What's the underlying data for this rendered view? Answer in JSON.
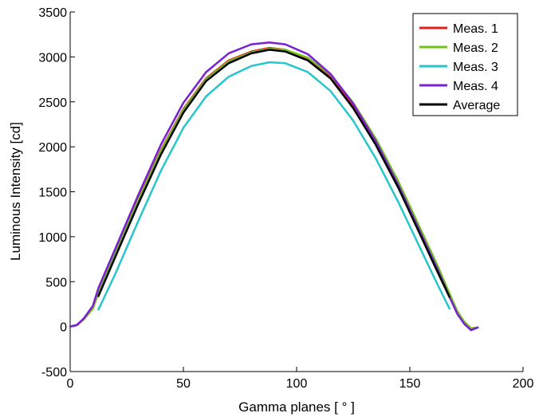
{
  "chart_data": {
    "type": "line",
    "xlabel": "Gamma planes [ ° ]",
    "ylabel": "Luminous Intensity  [cd]",
    "xlim": [
      0,
      200
    ],
    "ylim": [
      -500,
      3500
    ],
    "x_ticks": [
      "0",
      "50",
      "100",
      "150",
      "200"
    ],
    "y_ticks": [
      "-500",
      "0",
      "500",
      "1000",
      "1500",
      "2000",
      "2500",
      "3000",
      "3500"
    ],
    "x_tick_values": [
      0,
      50,
      100,
      150,
      200
    ],
    "y_tick_values": [
      -500,
      0,
      500,
      1000,
      1500,
      2000,
      2500,
      3000,
      3500
    ],
    "grid": false,
    "legend_position": "top-right",
    "series": [
      {
        "name": "Meas. 1",
        "color": "#e0201b",
        "points": [
          [
            0,
            0
          ],
          [
            3,
            15
          ],
          [
            6,
            80
          ],
          [
            10,
            200
          ],
          [
            12.5,
            380
          ],
          [
            20,
            830
          ],
          [
            30,
            1410
          ],
          [
            40,
            1960
          ],
          [
            50,
            2420
          ],
          [
            60,
            2760
          ],
          [
            70,
            2960
          ],
          [
            80,
            3060
          ],
          [
            88,
            3100
          ],
          [
            95,
            3080
          ],
          [
            105,
            2980
          ],
          [
            115,
            2780
          ],
          [
            125,
            2460
          ],
          [
            135,
            2060
          ],
          [
            145,
            1580
          ],
          [
            155,
            1040
          ],
          [
            162,
            660
          ],
          [
            167.5,
            350
          ],
          [
            171,
            160
          ],
          [
            174,
            50
          ],
          [
            177,
            -20
          ],
          [
            180,
            -10
          ]
        ]
      },
      {
        "name": "Meas. 2",
        "color": "#6fc31a",
        "points": [
          [
            0,
            0
          ],
          [
            3,
            15
          ],
          [
            6,
            80
          ],
          [
            10,
            200
          ],
          [
            12.5,
            380
          ],
          [
            20,
            820
          ],
          [
            30,
            1400
          ],
          [
            40,
            1950
          ],
          [
            50,
            2410
          ],
          [
            60,
            2750
          ],
          [
            70,
            2950
          ],
          [
            80,
            3050
          ],
          [
            88,
            3090
          ],
          [
            95,
            3080
          ],
          [
            105,
            2990
          ],
          [
            115,
            2800
          ],
          [
            125,
            2490
          ],
          [
            135,
            2090
          ],
          [
            145,
            1610
          ],
          [
            155,
            1070
          ],
          [
            162,
            690
          ],
          [
            167.5,
            370
          ],
          [
            171,
            170
          ],
          [
            174,
            55
          ],
          [
            177,
            -20
          ],
          [
            180,
            -10
          ]
        ]
      },
      {
        "name": "Meas. 3",
        "color": "#26c6cc",
        "points": [
          [
            12.5,
            190
          ],
          [
            20,
            590
          ],
          [
            30,
            1170
          ],
          [
            40,
            1730
          ],
          [
            50,
            2210
          ],
          [
            60,
            2560
          ],
          [
            70,
            2780
          ],
          [
            80,
            2900
          ],
          [
            88,
            2940
          ],
          [
            95,
            2930
          ],
          [
            105,
            2830
          ],
          [
            115,
            2620
          ],
          [
            125,
            2290
          ],
          [
            135,
            1870
          ],
          [
            145,
            1380
          ],
          [
            155,
            850
          ],
          [
            162,
            480
          ],
          [
            167.5,
            200
          ]
        ]
      },
      {
        "name": "Meas. 4",
        "color": "#7a1fd1",
        "points": [
          [
            0,
            0
          ],
          [
            3,
            20
          ],
          [
            6,
            90
          ],
          [
            10,
            230
          ],
          [
            12.5,
            430
          ],
          [
            20,
            870
          ],
          [
            30,
            1460
          ],
          [
            40,
            2020
          ],
          [
            50,
            2490
          ],
          [
            60,
            2830
          ],
          [
            70,
            3040
          ],
          [
            80,
            3140
          ],
          [
            88,
            3160
          ],
          [
            95,
            3140
          ],
          [
            105,
            3030
          ],
          [
            115,
            2810
          ],
          [
            125,
            2480
          ],
          [
            135,
            2060
          ],
          [
            145,
            1570
          ],
          [
            155,
            1030
          ],
          [
            162,
            650
          ],
          [
            167.5,
            330
          ],
          [
            171,
            140
          ],
          [
            174,
            30
          ],
          [
            177,
            -40
          ],
          [
            180,
            -10
          ]
        ]
      },
      {
        "name": "Average",
        "color": "#000000",
        "points": [
          [
            12.5,
            340
          ],
          [
            20,
            780
          ],
          [
            30,
            1360
          ],
          [
            40,
            1910
          ],
          [
            50,
            2380
          ],
          [
            60,
            2730
          ],
          [
            70,
            2930
          ],
          [
            80,
            3040
          ],
          [
            88,
            3080
          ],
          [
            95,
            3060
          ],
          [
            105,
            2960
          ],
          [
            115,
            2760
          ],
          [
            125,
            2430
          ],
          [
            135,
            2020
          ],
          [
            145,
            1540
          ],
          [
            155,
            1000
          ],
          [
            162,
            620
          ],
          [
            167.5,
            330
          ]
        ]
      }
    ]
  }
}
